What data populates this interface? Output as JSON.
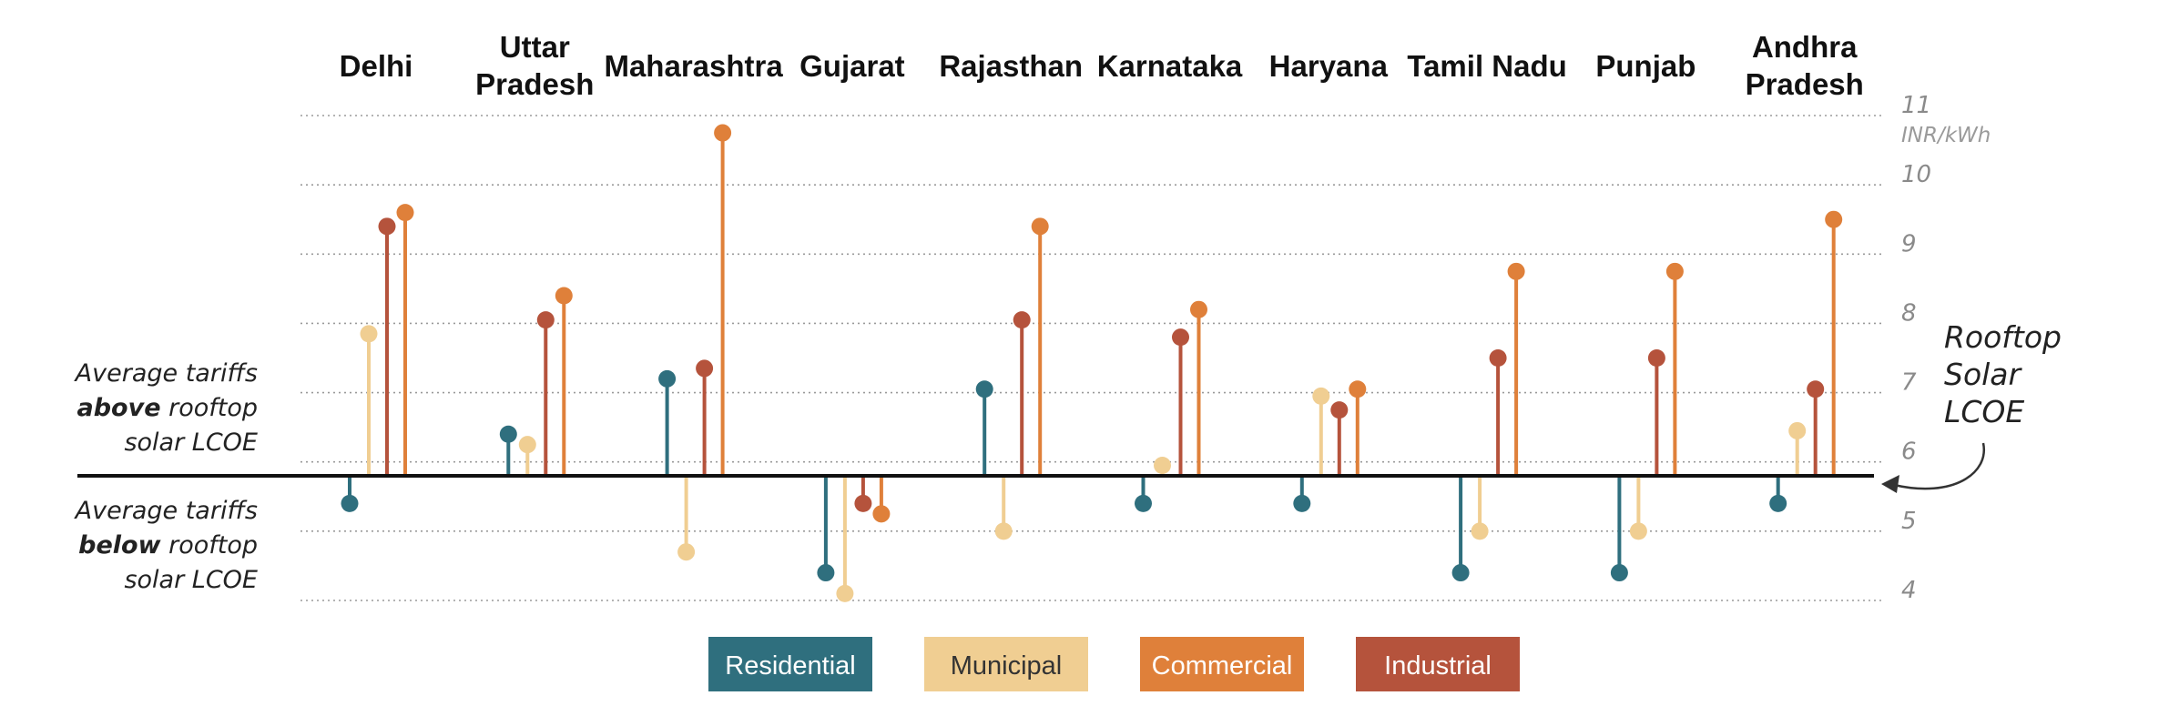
{
  "chart_data": {
    "type": "lollipop",
    "categories": [
      "Delhi",
      "Uttar Pradesh",
      "Maharashtra",
      "Gujarat",
      "Rajasthan",
      "Karnataka",
      "Haryana",
      "Tamil Nadu",
      "Punjab",
      "Andhra Pradesh"
    ],
    "category_lines": [
      [
        "Delhi"
      ],
      [
        "Uttar",
        "Pradesh"
      ],
      [
        "Maharashtra"
      ],
      [
        "Gujarat"
      ],
      [
        "Rajasthan"
      ],
      [
        "Karnataka"
      ],
      [
        "Haryana"
      ],
      [
        "Tamil Nadu"
      ],
      [
        "Punjab"
      ],
      [
        "Andhra",
        "Pradesh"
      ]
    ],
    "series": [
      {
        "name": "Residential",
        "color": "#2f6f7e",
        "values": [
          5.4,
          6.4,
          7.2,
          4.4,
          7.05,
          5.4,
          5.4,
          4.4,
          4.4,
          5.4
        ]
      },
      {
        "name": "Municipal",
        "color": "#f0ce92",
        "values": [
          7.85,
          6.25,
          4.7,
          4.1,
          5.0,
          5.95,
          6.95,
          5.0,
          5.0,
          6.45
        ]
      },
      {
        "name": "Industrial",
        "color": "#b5533c",
        "values": [
          9.4,
          8.05,
          7.35,
          5.4,
          8.05,
          7.8,
          6.75,
          7.5,
          7.5,
          7.05
        ]
      },
      {
        "name": "Commercial",
        "color": "#df803a",
        "values": [
          9.6,
          8.4,
          10.75,
          5.25,
          9.4,
          8.2,
          7.05,
          8.75,
          8.75,
          9.5
        ]
      }
    ],
    "legend_order": [
      "Residential",
      "Municipal",
      "Commercial",
      "Industrial"
    ],
    "reference_value": 5.8,
    "reference_label": [
      "Rooftop",
      "Solar",
      "LCOE"
    ],
    "y_ticks": [
      4,
      5,
      6,
      7,
      8,
      9,
      10,
      11
    ],
    "y_unit": "INR/kWh",
    "ylim": [
      4,
      11
    ],
    "grid": true,
    "legend_position": "bottom-center",
    "annotation_above": [
      "Average tariffs",
      "above",
      "rooftop",
      "solar LCOE"
    ],
    "annotation_below": [
      "Average tariffs",
      "below",
      "rooftop",
      "solar LCOE"
    ]
  }
}
